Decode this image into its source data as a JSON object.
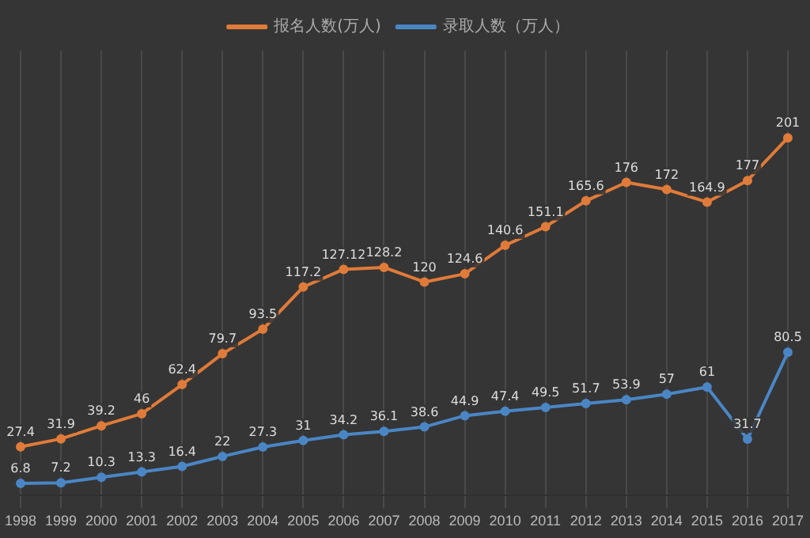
{
  "chart_data": {
    "type": "line",
    "categories": [
      "1998",
      "1999",
      "2000",
      "2001",
      "2002",
      "2003",
      "2004",
      "2005",
      "2006",
      "2007",
      "2008",
      "2009",
      "2010",
      "2011",
      "2012",
      "2013",
      "2014",
      "2015",
      "2016",
      "2017"
    ],
    "series": [
      {
        "name": "报名人数(万人)",
        "color": "#e07b39",
        "values": [
          27.4,
          31.9,
          39.2,
          46,
          62.4,
          79.7,
          93.5,
          117.2,
          127.12,
          128.2,
          120,
          124.6,
          140.6,
          151.1,
          165.6,
          176,
          172,
          164.9,
          177,
          201
        ]
      },
      {
        "name": "录取人数（万人）",
        "color": "#4a86c5",
        "values": [
          6.8,
          7.2,
          10.3,
          13.3,
          16.4,
          22,
          27.3,
          31,
          34.2,
          36.1,
          38.6,
          44.9,
          47.4,
          49.5,
          51.7,
          53.9,
          57,
          61,
          31.7,
          80.5
        ]
      }
    ],
    "data_labels": true,
    "grid": "x",
    "legend": "top",
    "marker": "circle",
    "line_style": "solid"
  }
}
